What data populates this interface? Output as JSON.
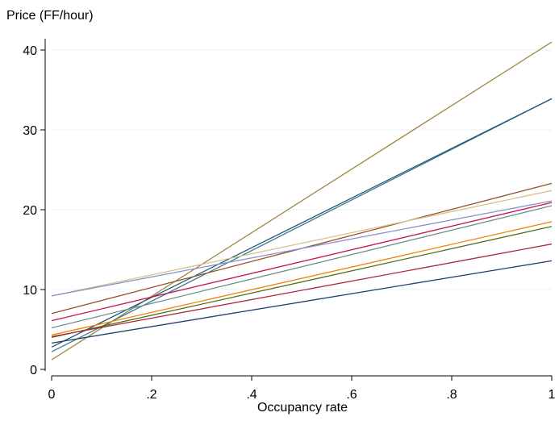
{
  "chart_data": {
    "type": "line",
    "title": "",
    "ylabel": "Price (FF/hour)",
    "xlabel": "Occupancy rate",
    "xlim": [
      0,
      1
    ],
    "ylim": [
      0,
      41
    ],
    "x_ticks": [
      {
        "value": 0,
        "label": "0"
      },
      {
        "value": 0.2,
        "label": ".2"
      },
      {
        "value": 0.4,
        "label": ".4"
      },
      {
        "value": 0.6,
        "label": ".6"
      },
      {
        "value": 0.8,
        "label": ".8"
      },
      {
        "value": 1,
        "label": "1"
      }
    ],
    "y_ticks": [
      {
        "value": 0,
        "label": "0"
      },
      {
        "value": 10,
        "label": "10"
      },
      {
        "value": 20,
        "label": "20"
      },
      {
        "value": 30,
        "label": "30"
      },
      {
        "value": 40,
        "label": "40"
      }
    ],
    "grid": "horizontal",
    "legend": "none",
    "series": [
      {
        "color": "#a08540",
        "x": [
          0,
          1
        ],
        "y": [
          1.2,
          41.0
        ]
      },
      {
        "color": "#3c7a8c",
        "x": [
          0,
          1
        ],
        "y": [
          2.2,
          33.9
        ]
      },
      {
        "color": "#1f5a78",
        "x": [
          0,
          1
        ],
        "y": [
          2.8,
          33.9
        ]
      },
      {
        "color": "#9a4f2a",
        "x": [
          0,
          1
        ],
        "y": [
          7.0,
          23.3
        ]
      },
      {
        "color": "#d4c08a",
        "x": [
          0,
          1
        ],
        "y": [
          9.2,
          22.4
        ]
      },
      {
        "color": "#8b8fd0",
        "x": [
          0,
          1
        ],
        "y": [
          9.2,
          21.1
        ]
      },
      {
        "color": "#c8144c",
        "x": [
          0,
          1
        ],
        "y": [
          6.1,
          20.9
        ]
      },
      {
        "color": "#6f8f8f",
        "x": [
          0,
          1
        ],
        "y": [
          5.2,
          20.5
        ]
      },
      {
        "color": "#f0820a",
        "x": [
          0,
          1
        ],
        "y": [
          4.3,
          18.5
        ]
      },
      {
        "color": "#4f6f1a",
        "x": [
          0,
          1
        ],
        "y": [
          4.0,
          17.9
        ]
      },
      {
        "color": "#a82a3a",
        "x": [
          0,
          1
        ],
        "y": [
          4.1,
          15.7
        ]
      },
      {
        "color": "#1f3f6e",
        "x": [
          0,
          1
        ],
        "y": [
          3.3,
          13.6
        ]
      }
    ]
  }
}
